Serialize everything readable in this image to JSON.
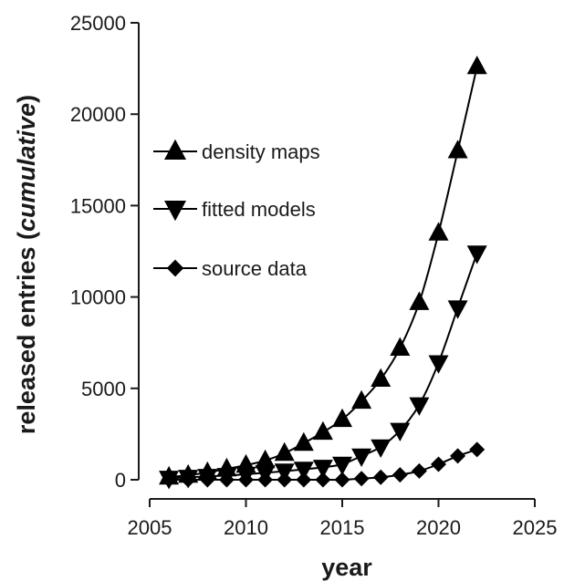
{
  "chart_data": {
    "type": "line",
    "xlabel": "year",
    "ylabel_main": "released entries (",
    "ylabel_italic": "cumulative",
    "ylabel_end": ")",
    "xlim": [
      2005,
      2025
    ],
    "ylim": [
      0,
      25000
    ],
    "x_ticks": [
      2005,
      2010,
      2015,
      2020,
      2025
    ],
    "y_ticks": [
      0,
      5000,
      10000,
      15000,
      20000,
      25000
    ],
    "x_tick_labels": [
      "2005",
      "2010",
      "2015",
      "2020",
      "2025"
    ],
    "y_tick_labels": [
      "0",
      "5000",
      "10000",
      "15000",
      "20000",
      "25000"
    ],
    "grid": false,
    "legend_position": "left",
    "x": [
      2006,
      2007,
      2008,
      2009,
      2010,
      2011,
      2012,
      2013,
      2014,
      2015,
      2016,
      2017,
      2018,
      2019,
      2020,
      2021,
      2022
    ],
    "series": [
      {
        "name": "density maps",
        "marker": "triangle-up",
        "values": [
          150,
          250,
          400,
          600,
          800,
          1050,
          1450,
          2000,
          2600,
          3300,
          4300,
          5500,
          7200,
          9700,
          13500,
          18000,
          22600
        ]
      },
      {
        "name": "fitted models",
        "marker": "triangle-down",
        "values": [
          80,
          130,
          180,
          230,
          300,
          380,
          470,
          570,
          680,
          850,
          1300,
          1800,
          2700,
          4100,
          6400,
          9400,
          12400
        ]
      },
      {
        "name": "source data",
        "marker": "diamond",
        "values": [
          0,
          0,
          0,
          0,
          0,
          0,
          0,
          0,
          0,
          0,
          60,
          140,
          270,
          480,
          850,
          1300,
          1650
        ]
      }
    ]
  }
}
